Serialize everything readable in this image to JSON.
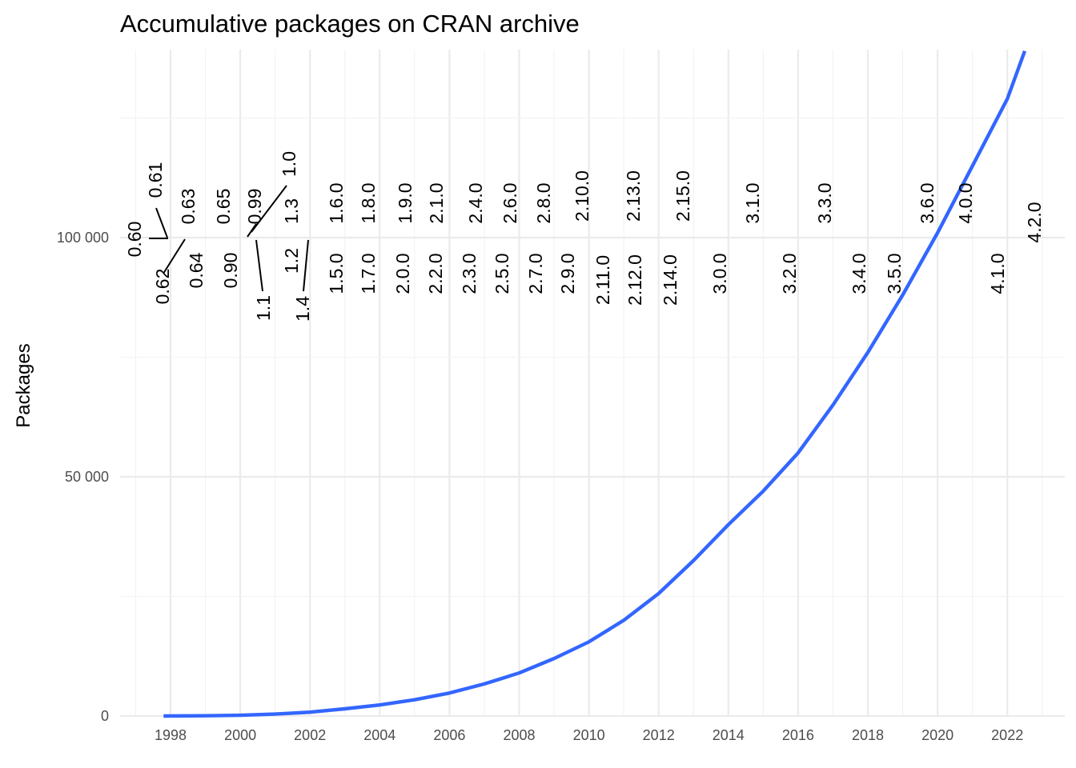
{
  "chart_data": {
    "type": "line",
    "title": "Accumulative packages on CRAN archive",
    "xlabel": "",
    "ylabel": "Packages",
    "xlim": [
      1996.55,
      2023.55
    ],
    "ylim": [
      0,
      139000
    ],
    "x_ticks": [
      1998,
      2000,
      2002,
      2004,
      2006,
      2008,
      2010,
      2012,
      2014,
      2016,
      2018,
      2020,
      2022
    ],
    "x_tick_labels": [
      "1998",
      "2000",
      "2002",
      "2004",
      "2006",
      "2008",
      "2010",
      "2012",
      "2014",
      "2016",
      "2018",
      "2020",
      "2022"
    ],
    "y_ticks": [
      0,
      50000,
      100000
    ],
    "y_tick_labels": [
      "0",
      "50 000",
      "100 000"
    ],
    "grid": true,
    "series": [
      {
        "color": "#3366ff",
        "x": [
          1997.8,
          1999,
          2000,
          2001,
          2002,
          2003,
          2004,
          2005,
          2006,
          2007,
          2008,
          2009,
          2010,
          2011,
          2012,
          2013,
          2014,
          2015,
          2016,
          2017,
          2018,
          2019,
          2020,
          2021,
          2022,
          2022.5
        ],
        "y": [
          0,
          50,
          150,
          400,
          800,
          1500,
          2300,
          3400,
          4800,
          6700,
          9000,
          12000,
          15500,
          20000,
          25600,
          32500,
          40000,
          47000,
          55000,
          65000,
          76000,
          88000,
          101000,
          115000,
          129000,
          139000
        ]
      }
    ],
    "annotations": [
      {
        "label": "0.60",
        "x": 1997.8,
        "y": 100000
      },
      {
        "label": "0.61",
        "x": 1997.9,
        "y": 100000
      },
      {
        "label": "0.62",
        "x": 1997.95,
        "y": 100000
      },
      {
        "label": "0.63",
        "x": 1998.45,
        "y": 100000
      },
      {
        "label": "0.64",
        "x": 1998.5,
        "y": 100000
      },
      {
        "label": "0.65",
        "x": 1999.45,
        "y": 100000
      },
      {
        "label": "0.90",
        "x": 1999.9,
        "y": 100000
      },
      {
        "label": "0.99",
        "x": 2000.0,
        "y": 100000
      },
      {
        "label": "1.0",
        "x": 2000.1,
        "y": 100000
      },
      {
        "label": "1.1",
        "x": 2000.3,
        "y": 100000
      },
      {
        "label": "1.2",
        "x": 2000.85,
        "y": 100000
      },
      {
        "label": "1.3",
        "x": 2001.0,
        "y": 100000
      },
      {
        "label": "1.4",
        "x": 2001.9,
        "y": 100000
      },
      {
        "label": "1.5.0",
        "x": 2002.3,
        "y": 100000
      },
      {
        "label": "1.6.0",
        "x": 2002.8,
        "y": 100000
      },
      {
        "label": "1.7.0",
        "x": 2003.3,
        "y": 100000
      },
      {
        "label": "1.8.0",
        "x": 2003.8,
        "y": 100000
      },
      {
        "label": "1.9.0",
        "x": 2004.3,
        "y": 100000
      },
      {
        "label": "2.0.0",
        "x": 2004.8,
        "y": 100000
      },
      {
        "label": "2.1.0",
        "x": 2005.3,
        "y": 100000
      },
      {
        "label": "2.2.0",
        "x": 2005.8,
        "y": 100000
      },
      {
        "label": "2.3.0",
        "x": 2006.3,
        "y": 100000
      },
      {
        "label": "2.4.0",
        "x": 2006.8,
        "y": 100000
      },
      {
        "label": "2.5.0",
        "x": 2007.3,
        "y": 100000
      },
      {
        "label": "2.6.0",
        "x": 2007.8,
        "y": 100000
      },
      {
        "label": "2.7.0",
        "x": 2008.3,
        "y": 100000
      },
      {
        "label": "2.8.0",
        "x": 2008.8,
        "y": 100000
      },
      {
        "label": "2.9.0",
        "x": 2009.3,
        "y": 100000
      },
      {
        "label": "2.10.0",
        "x": 2009.8,
        "y": 100000
      },
      {
        "label": "2.11.0",
        "x": 2010.3,
        "y": 100000
      },
      {
        "label": "2.12.0",
        "x": 2010.8,
        "y": 100000
      },
      {
        "label": "2.13.0",
        "x": 2011.3,
        "y": 100000
      },
      {
        "label": "2.14.0",
        "x": 2011.8,
        "y": 100000
      },
      {
        "label": "2.15.0",
        "x": 2012.3,
        "y": 100000
      },
      {
        "label": "3.0.0",
        "x": 2013.3,
        "y": 100000
      },
      {
        "label": "3.1.0",
        "x": 2014.3,
        "y": 100000
      },
      {
        "label": "3.2.0",
        "x": 2015.3,
        "y": 100000
      },
      {
        "label": "3.3.0",
        "x": 2016.3,
        "y": 100000
      },
      {
        "label": "3.4.0",
        "x": 2017.3,
        "y": 100000
      },
      {
        "label": "3.5.0",
        "x": 2018.3,
        "y": 100000
      },
      {
        "label": "3.6.0",
        "x": 2019.3,
        "y": 100000
      },
      {
        "label": "4.0.0",
        "x": 2020.3,
        "y": 100000
      },
      {
        "label": "4.1.0",
        "x": 2021.4,
        "y": 100000
      },
      {
        "label": "4.2.0",
        "x": 2022.3,
        "y": 100000
      }
    ]
  }
}
